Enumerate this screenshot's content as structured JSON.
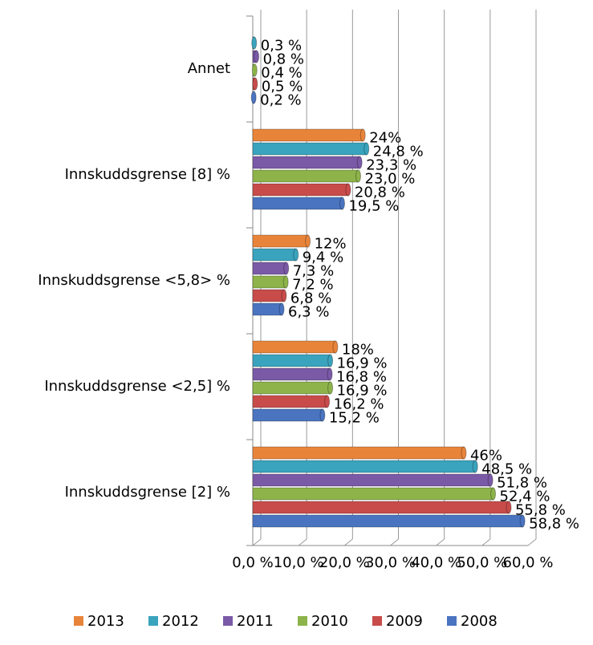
{
  "chart_data": {
    "type": "bar",
    "categories": [
      "Annet",
      "Innskuddsgrense [8] %",
      "Innskuddsgrense <5,8> %",
      "Innskuddsgrense <2,5] %",
      "Innskuddsgrense [2] %"
    ],
    "series": [
      {
        "name": "2013",
        "color": "#e8843a",
        "values": [
          null,
          24,
          12,
          18,
          46
        ],
        "value_labels": [
          null,
          "24%",
          "12%",
          "18%",
          "46%"
        ]
      },
      {
        "name": "2012",
        "color": "#3aa3bd",
        "values": [
          0.3,
          24.8,
          9.4,
          16.9,
          48.5
        ],
        "value_labels": [
          "0,3 %",
          "24,8 %",
          "9,4 %",
          "16,9 %",
          "48,5 %"
        ]
      },
      {
        "name": "2011",
        "color": "#7a5aa6",
        "values": [
          0.8,
          23.3,
          7.3,
          16.8,
          51.8
        ],
        "value_labels": [
          "0,8 %",
          "23,3 %",
          "7,3 %",
          "16,8 %",
          "51,8 %"
        ]
      },
      {
        "name": "2010",
        "color": "#8db34a",
        "values": [
          0.4,
          23.0,
          7.2,
          16.9,
          52.4
        ],
        "value_labels": [
          "0,4 %",
          "23,0 %",
          "7,2 %",
          "16,9 %",
          "52,4 %"
        ]
      },
      {
        "name": "2009",
        "color": "#c84c4a",
        "values": [
          0.5,
          20.8,
          6.8,
          16.2,
          55.8
        ],
        "value_labels": [
          "0,5 %",
          "20,8 %",
          "6,8 %",
          "16,2 %",
          "55,8 %"
        ]
      },
      {
        "name": "2008",
        "color": "#4a74c0",
        "values": [
          0.2,
          19.5,
          6.3,
          15.2,
          58.8
        ],
        "value_labels": [
          "0,2 %",
          "19,5 %",
          "6,3 %",
          "15,2 %",
          "58,8 %"
        ]
      }
    ],
    "xlim": [
      0,
      60
    ],
    "xticks": [
      {
        "value": 0,
        "label": "0,0 %"
      },
      {
        "value": 10,
        "label": "10,0 %"
      },
      {
        "value": 20,
        "label": "20,0 %"
      },
      {
        "value": 30,
        "label": "30,0 %"
      },
      {
        "value": 40,
        "label": "40,0 %"
      },
      {
        "value": 50,
        "label": "50,0 %"
      },
      {
        "value": 60,
        "label": "60,0 %"
      }
    ],
    "grid": true,
    "legend": "bottom"
  }
}
